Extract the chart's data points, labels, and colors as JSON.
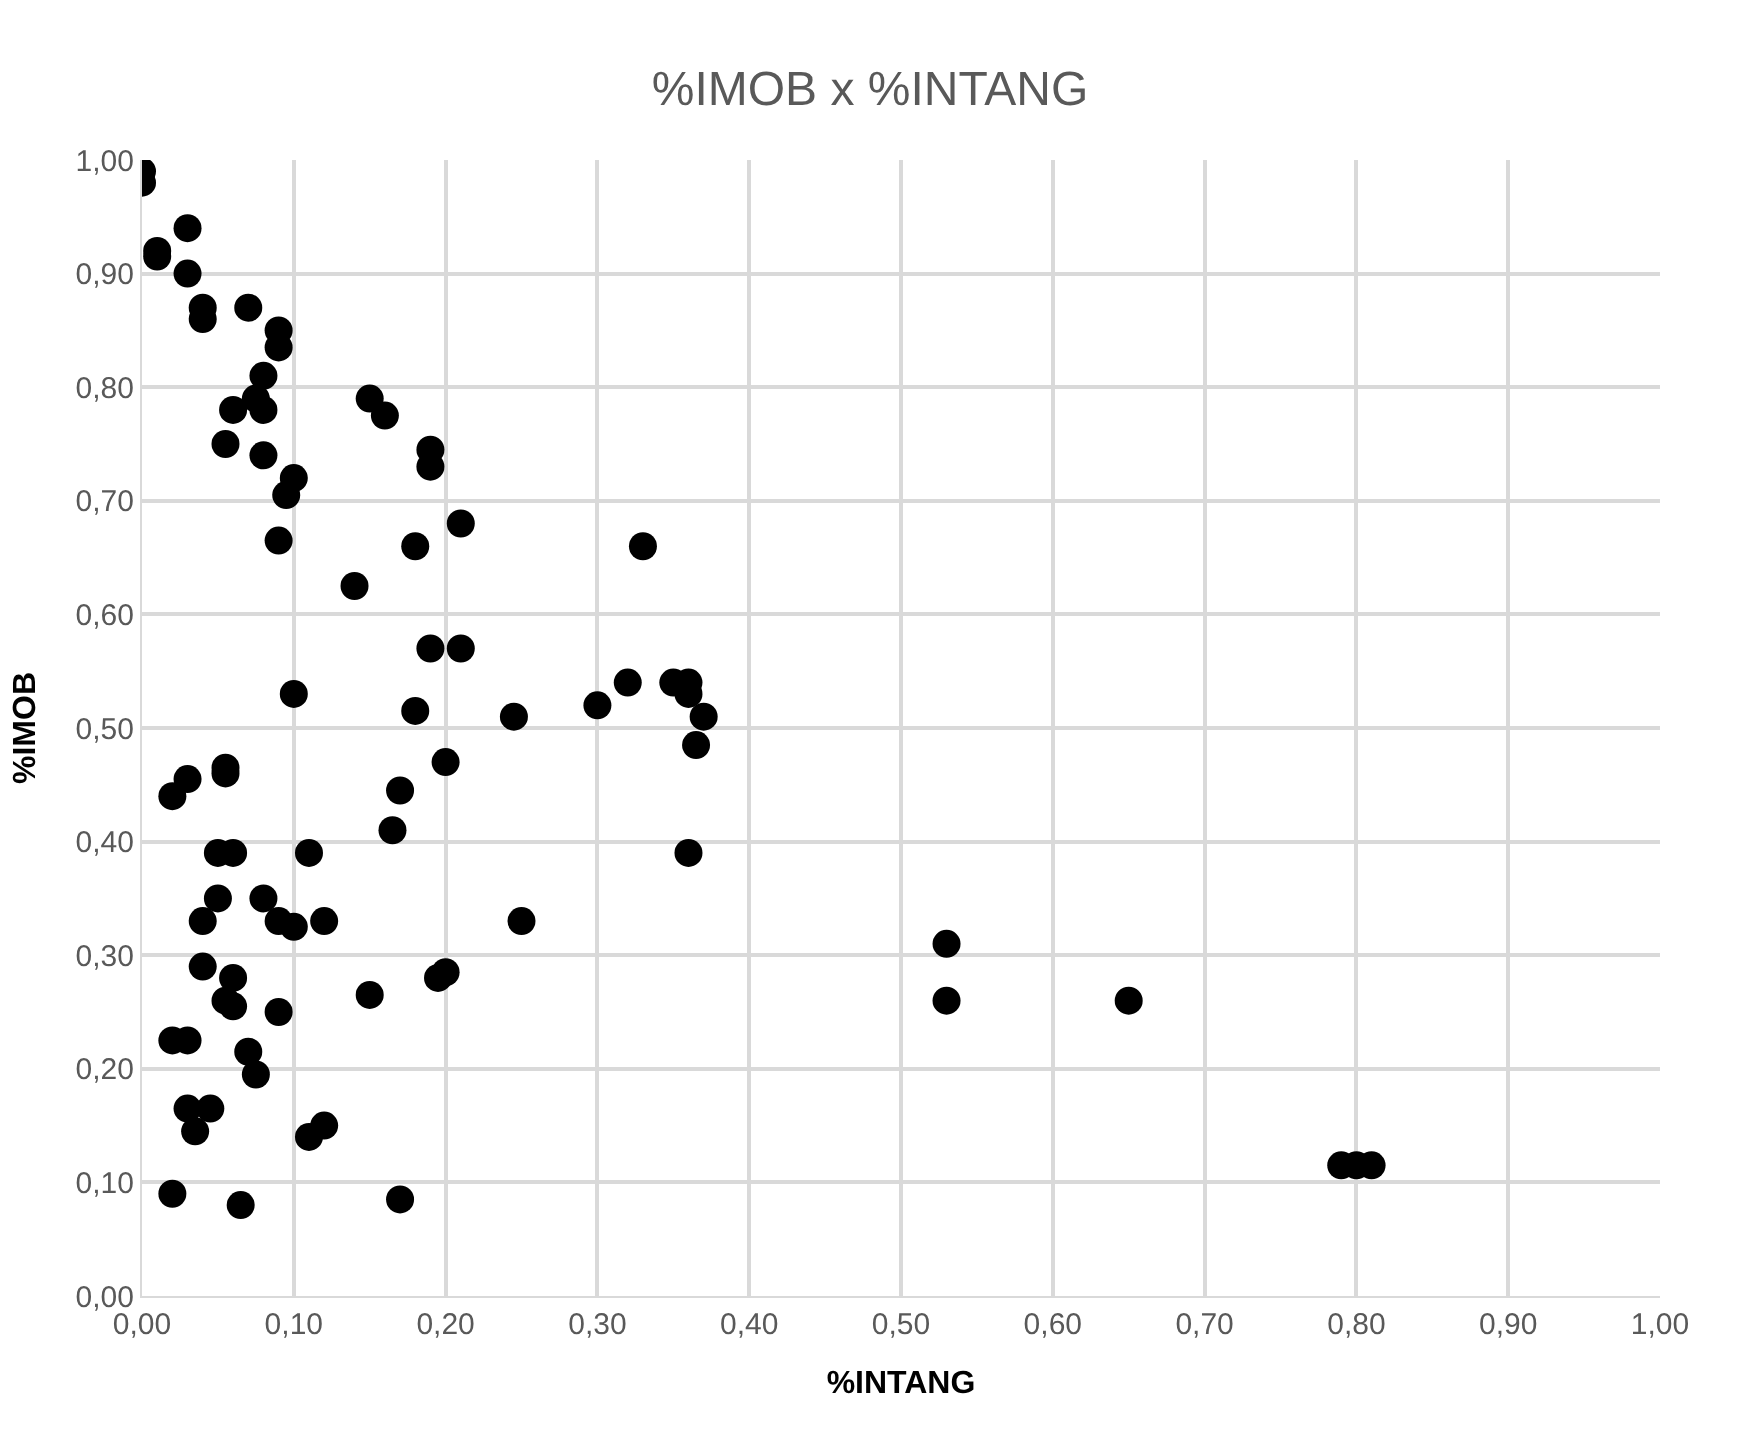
{
  "chart_data": {
    "type": "scatter",
    "title": "%IMOB x %INTANG",
    "xlabel": "%INTANG",
    "ylabel": "%IMOB",
    "grid": true,
    "marker": "circle",
    "xlim": [
      0,
      1
    ],
    "ylim": [
      0,
      1
    ],
    "xticks": [
      {
        "value": 0,
        "label": "0,00"
      },
      {
        "value": 0.1,
        "label": "0,10"
      },
      {
        "value": 0.2,
        "label": "0,20"
      },
      {
        "value": 0.3,
        "label": "0,30"
      },
      {
        "value": 0.4,
        "label": "0,40"
      },
      {
        "value": 0.5,
        "label": "0,50"
      },
      {
        "value": 0.6,
        "label": "0,60"
      },
      {
        "value": 0.7,
        "label": "0,70"
      },
      {
        "value": 0.8,
        "label": "0,80"
      },
      {
        "value": 0.9,
        "label": "0,90"
      },
      {
        "value": 1,
        "label": "1,00"
      }
    ],
    "yticks": [
      {
        "value": 0,
        "label": "0,00"
      },
      {
        "value": 0.1,
        "label": "0,10"
      },
      {
        "value": 0.2,
        "label": "0,20"
      },
      {
        "value": 0.3,
        "label": "0,30"
      },
      {
        "value": 0.4,
        "label": "0,40"
      },
      {
        "value": 0.5,
        "label": "0,50"
      },
      {
        "value": 0.6,
        "label": "0,60"
      },
      {
        "value": 0.7,
        "label": "0,70"
      },
      {
        "value": 0.8,
        "label": "0,80"
      },
      {
        "value": 0.9,
        "label": "0,90"
      },
      {
        "value": 1,
        "label": "1,00"
      }
    ],
    "series": [
      {
        "color": "#000000",
        "x": [
          0.0,
          0.0,
          0.01,
          0.01,
          0.03,
          0.03,
          0.04,
          0.04,
          0.07,
          0.09,
          0.09,
          0.08,
          0.075,
          0.08,
          0.06,
          0.055,
          0.08,
          0.15,
          0.16,
          0.19,
          0.19,
          0.1,
          0.095,
          0.09,
          0.18,
          0.21,
          0.14,
          0.33,
          0.19,
          0.21,
          0.3,
          0.32,
          0.35,
          0.36,
          0.36,
          0.37,
          0.365,
          0.36,
          0.245,
          0.18,
          0.1,
          0.2,
          0.17,
          0.165,
          0.02,
          0.03,
          0.055,
          0.055,
          0.05,
          0.06,
          0.11,
          0.04,
          0.05,
          0.08,
          0.09,
          0.1,
          0.12,
          0.04,
          0.06,
          0.055,
          0.06,
          0.09,
          0.15,
          0.195,
          0.2,
          0.25,
          0.02,
          0.03,
          0.07,
          0.075,
          0.03,
          0.045,
          0.035,
          0.11,
          0.12,
          0.02,
          0.065,
          0.17,
          0.53,
          0.53,
          0.65,
          0.79,
          0.8,
          0.81
        ],
        "values": [
          0.99,
          0.98,
          0.92,
          0.915,
          0.94,
          0.9,
          0.87,
          0.86,
          0.87,
          0.85,
          0.835,
          0.81,
          0.79,
          0.78,
          0.78,
          0.75,
          0.74,
          0.79,
          0.775,
          0.745,
          0.73,
          0.72,
          0.705,
          0.665,
          0.66,
          0.68,
          0.625,
          0.66,
          0.57,
          0.57,
          0.52,
          0.54,
          0.54,
          0.54,
          0.53,
          0.51,
          0.485,
          0.39,
          0.51,
          0.515,
          0.53,
          0.47,
          0.445,
          0.41,
          0.44,
          0.455,
          0.465,
          0.46,
          0.39,
          0.39,
          0.39,
          0.33,
          0.35,
          0.35,
          0.33,
          0.325,
          0.33,
          0.29,
          0.28,
          0.26,
          0.255,
          0.25,
          0.265,
          0.28,
          0.285,
          0.33,
          0.225,
          0.225,
          0.215,
          0.195,
          0.165,
          0.165,
          0.145,
          0.14,
          0.15,
          0.09,
          0.08,
          0.085,
          0.31,
          0.26,
          0.26,
          0.115,
          0.115,
          0.115
        ]
      }
    ]
  }
}
